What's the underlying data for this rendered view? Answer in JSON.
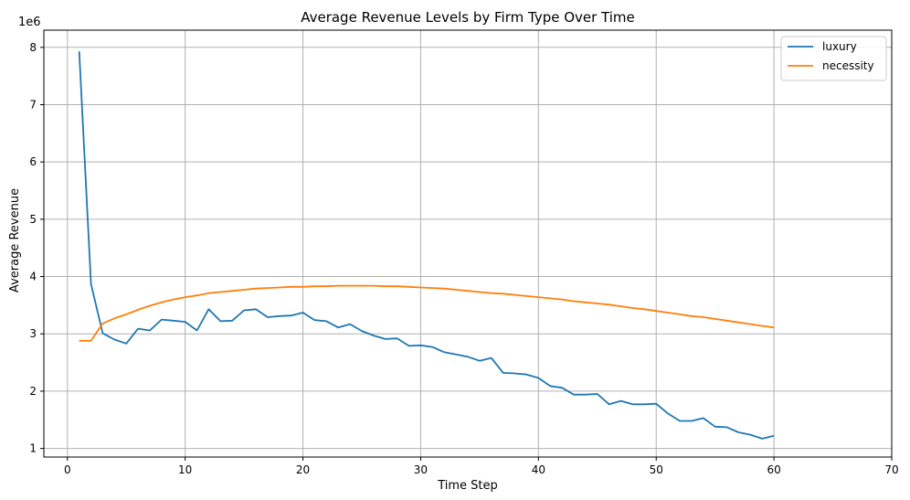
{
  "chart_data": {
    "type": "line",
    "title": "Average Revenue Levels by Firm Type Over Time",
    "xlabel": "Time Step",
    "ylabel": "Average Revenue",
    "y_offset_label": "1e6",
    "y_multiplier": 1000000,
    "xlim": [
      -2,
      70
    ],
    "ylim": [
      0.85,
      8.3
    ],
    "xticks": [
      0,
      10,
      20,
      30,
      40,
      50,
      60,
      70
    ],
    "yticks": [
      1,
      2,
      3,
      4,
      5,
      6,
      7,
      8
    ],
    "grid": true,
    "legend_position": "upper right",
    "x": [
      1,
      2,
      3,
      4,
      5,
      6,
      7,
      8,
      9,
      10,
      11,
      12,
      13,
      14,
      15,
      16,
      17,
      18,
      19,
      20,
      21,
      22,
      23,
      24,
      25,
      26,
      27,
      28,
      29,
      30,
      31,
      32,
      33,
      34,
      35,
      36,
      37,
      38,
      39,
      40,
      41,
      42,
      43,
      44,
      45,
      46,
      47,
      48,
      49,
      50,
      51,
      52,
      53,
      54,
      55,
      56,
      57,
      58,
      59,
      60
    ],
    "series": [
      {
        "name": "luxury",
        "color": "#1f77b4",
        "values": [
          7.93,
          3.87,
          3.01,
          2.9,
          2.83,
          3.09,
          3.06,
          3.25,
          3.23,
          3.21,
          3.06,
          3.43,
          3.22,
          3.23,
          3.41,
          3.43,
          3.29,
          3.31,
          3.32,
          3.37,
          3.24,
          3.22,
          3.11,
          3.17,
          3.05,
          2.97,
          2.91,
          2.92,
          2.79,
          2.8,
          2.77,
          2.68,
          2.64,
          2.6,
          2.53,
          2.58,
          2.32,
          2.31,
          2.29,
          2.23,
          2.09,
          2.06,
          1.94,
          1.94,
          1.95,
          1.77,
          1.83,
          1.77,
          1.77,
          1.78,
          1.61,
          1.48,
          1.48,
          1.53,
          1.38,
          1.37,
          1.28,
          1.24,
          1.17,
          1.22
        ]
      },
      {
        "name": "necessity",
        "color": "#ff7f0e",
        "values": [
          2.88,
          2.88,
          3.18,
          3.27,
          3.34,
          3.42,
          3.49,
          3.55,
          3.6,
          3.64,
          3.67,
          3.71,
          3.73,
          3.75,
          3.77,
          3.79,
          3.8,
          3.81,
          3.82,
          3.82,
          3.83,
          3.83,
          3.84,
          3.84,
          3.84,
          3.84,
          3.83,
          3.83,
          3.82,
          3.81,
          3.8,
          3.79,
          3.77,
          3.75,
          3.73,
          3.71,
          3.7,
          3.68,
          3.66,
          3.64,
          3.62,
          3.6,
          3.57,
          3.55,
          3.53,
          3.51,
          3.48,
          3.45,
          3.43,
          3.4,
          3.37,
          3.34,
          3.31,
          3.29,
          3.26,
          3.23,
          3.2,
          3.17,
          3.14,
          3.11
        ]
      }
    ]
  }
}
